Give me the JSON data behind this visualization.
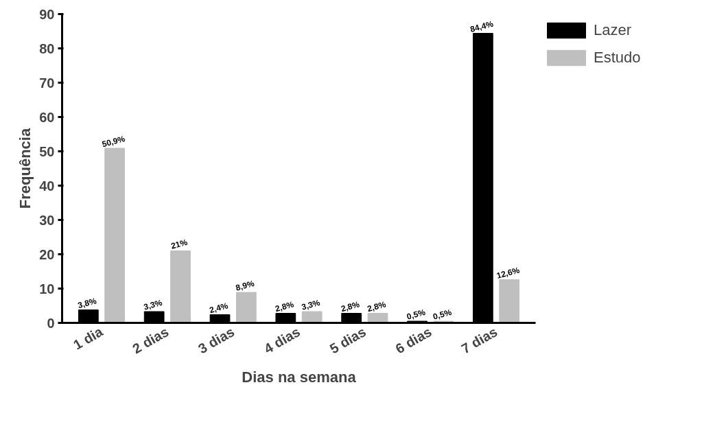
{
  "chart_data": {
    "type": "bar",
    "xlabel": "Dias na semana",
    "ylabel": "Frequência",
    "categories": [
      "1 dia",
      "2 dias",
      "3 dias",
      "4 dias",
      "5 dias",
      "6 dias",
      "7 dias"
    ],
    "series": [
      {
        "name": "Lazer",
        "color": "#000000",
        "values": [
          3.8,
          3.3,
          2.4,
          2.8,
          2.8,
          0.5,
          84.4
        ],
        "value_labels": [
          "3,8%",
          "3,3%",
          "2,4%",
          "2,8%",
          "2,8%",
          "0,5%",
          "84,4%"
        ]
      },
      {
        "name": "Estudo",
        "color": "#bfbfbf",
        "values": [
          50.9,
          21,
          8.9,
          3.3,
          2.8,
          0.5,
          12.6
        ],
        "value_labels": [
          "50,9%",
          "21%",
          "8,9%",
          "3,3%",
          "2,8%",
          "0,5%",
          "12,6%"
        ]
      }
    ],
    "ylim": [
      0,
      90
    ],
    "yticks": [
      0,
      10,
      20,
      30,
      40,
      50,
      60,
      70,
      80,
      90
    ],
    "grid": false,
    "legend": "top right"
  }
}
